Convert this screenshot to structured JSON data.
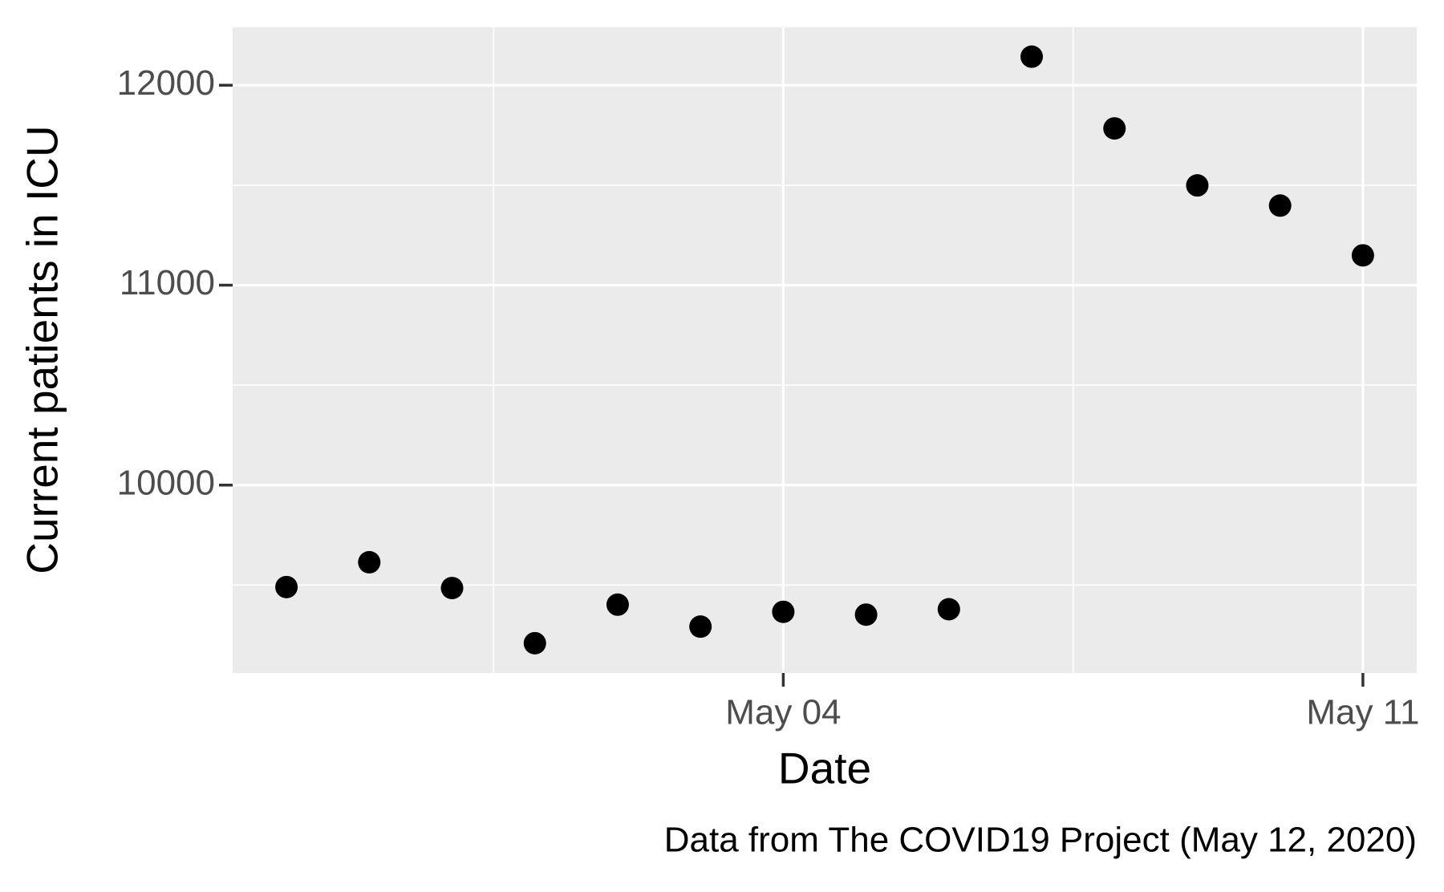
{
  "chart_data": {
    "type": "scatter",
    "x_label": "Date",
    "y_label": "Current patients in ICU",
    "caption": "Data from The COVID19 Project (May 12, 2020)",
    "x": [
      "Apr 28",
      "Apr 29",
      "Apr 30",
      "May 01",
      "May 02",
      "May 03",
      "May 04",
      "May 05",
      "May 06",
      "May 07",
      "May 08",
      "May 09",
      "May 10",
      "May 11"
    ],
    "series": [
      {
        "name": "ICU",
        "color": "#000000",
        "values": [
          9490,
          9614,
          9485,
          9209,
          9402,
          9292,
          9366,
          9352,
          9379,
          12143,
          11784,
          11499,
          11398,
          11149
        ]
      }
    ],
    "xticks": [
      "May 04",
      "May 11"
    ],
    "ylim": [
      9060,
      12290
    ],
    "yticks": [
      10000,
      11000,
      12000
    ],
    "grid": true
  }
}
